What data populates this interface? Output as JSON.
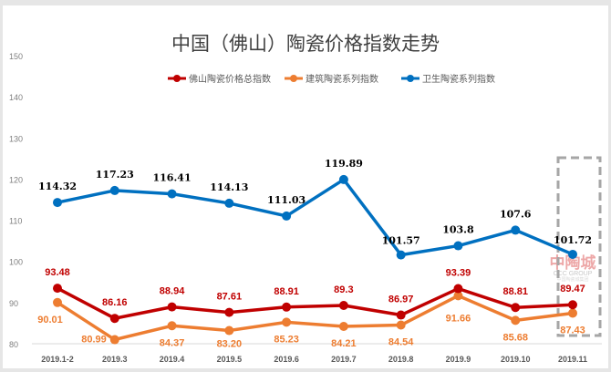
{
  "chart_data": {
    "type": "line",
    "title": "中国（佛山）陶瓷价格指数走势",
    "xlabel": "",
    "ylabel": "",
    "ylim": [
      80,
      150
    ],
    "yticks": [
      80,
      90,
      100,
      110,
      120,
      130,
      140,
      150
    ],
    "grid": false,
    "legend_position": "top",
    "categories": [
      "2019.1-2",
      "2019.3",
      "2019.4",
      "2019.5",
      "2019.6",
      "2019.7",
      "2019.8",
      "2019.9",
      "2019.10",
      "2019.11"
    ],
    "series": [
      {
        "name": "佛山陶瓷价格总指数",
        "color": "#c00000",
        "values": [
          93.48,
          86.16,
          88.94,
          87.61,
          88.91,
          89.3,
          86.97,
          93.39,
          88.81,
          89.47
        ],
        "labels": [
          "93.48",
          "86.16",
          "88.94",
          "87.61",
          "88.91",
          "89.3",
          "86.97",
          "93.39",
          "88.81",
          "89.47"
        ]
      },
      {
        "name": "建筑陶瓷系列指数",
        "color": "#ed7d31",
        "values": [
          90.01,
          80.99,
          84.37,
          83.2,
          85.23,
          84.21,
          84.54,
          91.66,
          85.68,
          87.43
        ],
        "labels": [
          "90.01",
          "80.99",
          "84.37",
          "83.20",
          "85.23",
          "84.21",
          "84.54",
          "91.66",
          "85.68",
          "87.43"
        ]
      },
      {
        "name": "卫生陶瓷系列指数",
        "color": "#0070c0",
        "values": [
          114.32,
          117.23,
          116.41,
          114.13,
          111.03,
          119.89,
          101.57,
          103.8,
          107.6,
          101.72
        ],
        "labels": [
          "114.32",
          "117.23",
          "116.41",
          "114.13",
          "111.03",
          "119.89",
          "101.57",
          "103.8",
          "107.6",
          "101.72"
        ]
      }
    ],
    "highlight": "2019.11"
  },
  "watermark": {
    "logo": "中陶城",
    "sub": "CCC GROUP",
    "sub2": "中国陶瓷城集团"
  }
}
